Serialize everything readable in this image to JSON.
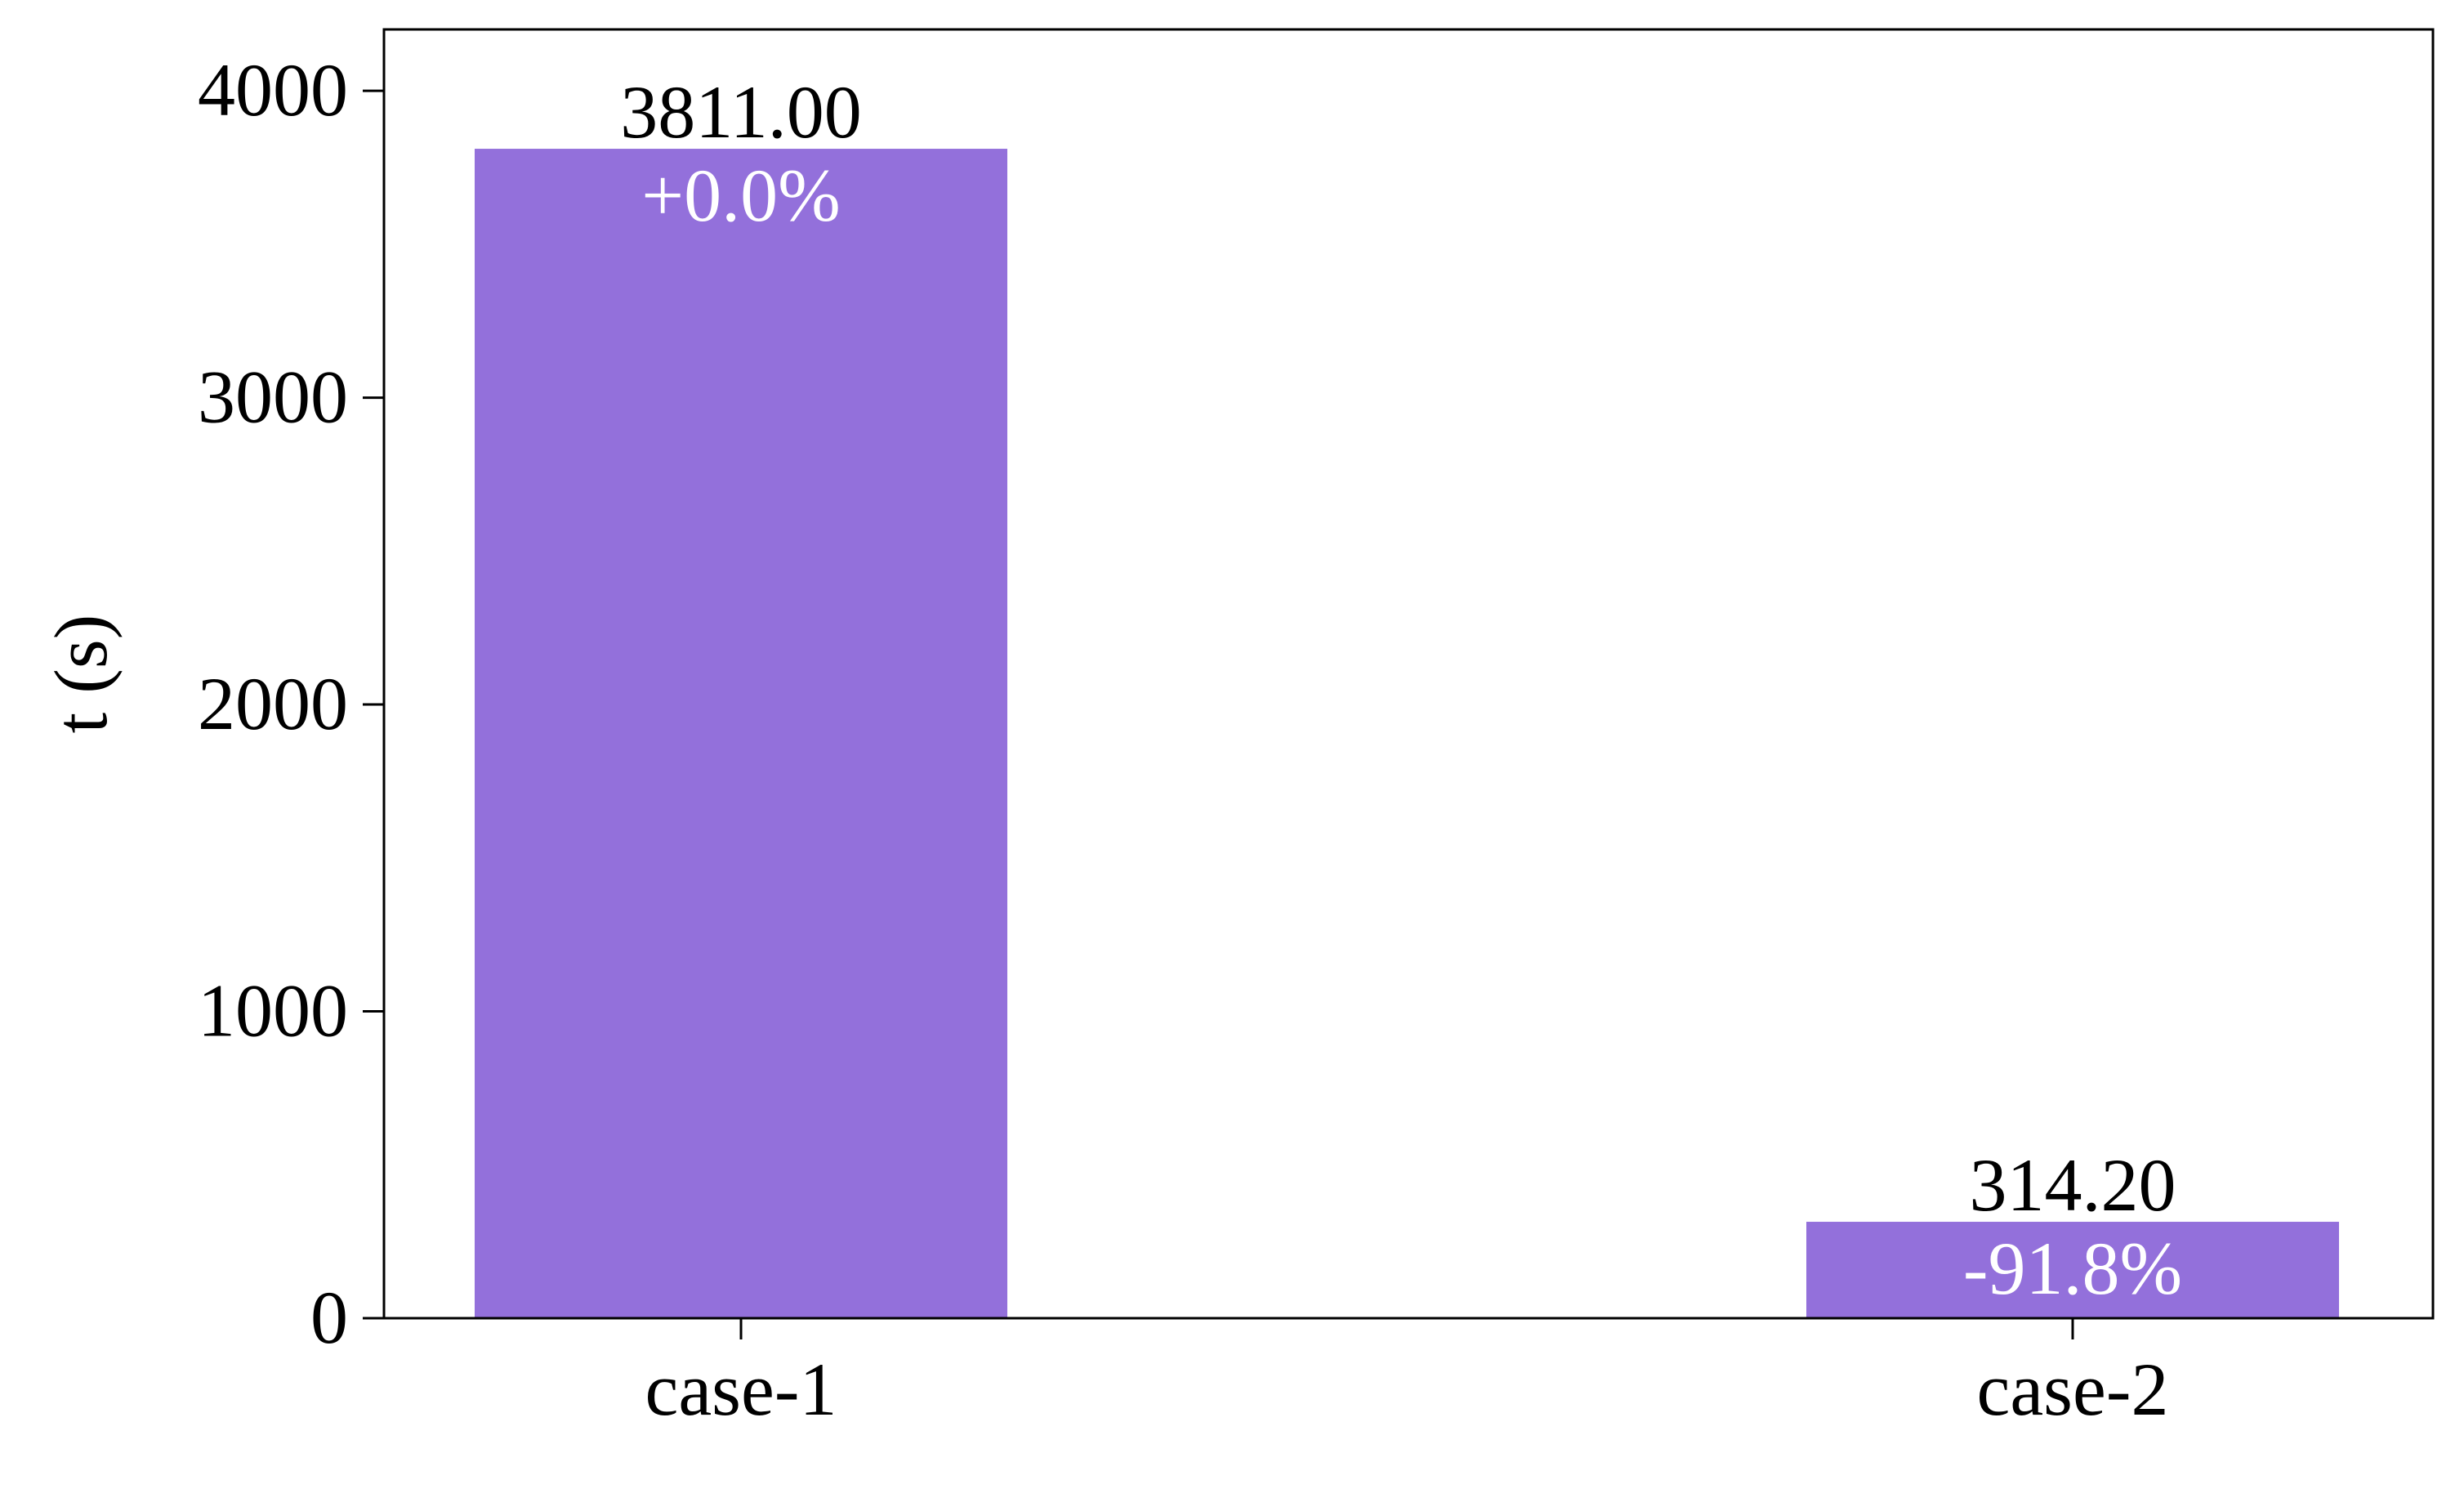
{
  "chart_data": {
    "type": "bar",
    "categories": [
      "case-1",
      "case-2"
    ],
    "values": [
      3811.0,
      314.2
    ],
    "value_labels": [
      "3811.00",
      "314.20"
    ],
    "pct_labels": [
      "+0.0%",
      "-91.8%"
    ],
    "title": "",
    "xlabel": "",
    "ylabel": "t (s)",
    "ylim": [
      0,
      4200
    ],
    "yticks": [
      0,
      1000,
      2000,
      3000,
      4000
    ],
    "ytick_labels": [
      "0",
      "1000",
      "2000",
      "3000",
      "4000"
    ],
    "bar_color": "#9370db",
    "grid": false,
    "legend": "none"
  }
}
